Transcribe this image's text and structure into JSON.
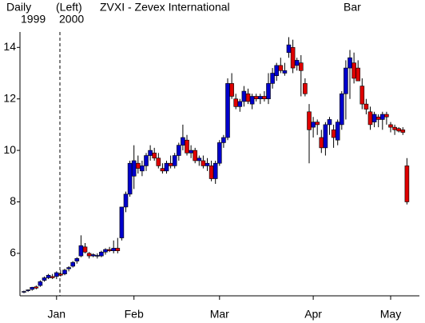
{
  "chart_data": {
    "type": "candlestick",
    "title": "ZVXI - Zevex International",
    "header": {
      "period": "Daily",
      "start_year": "1999",
      "axis_side": "(Left)",
      "end_year": "2000",
      "style": "Bar"
    },
    "categories": [
      null,
      null,
      null,
      null,
      null,
      null,
      null,
      null,
      "Jan",
      null,
      null,
      null,
      null,
      null,
      null,
      null,
      null,
      null,
      null,
      null,
      null,
      null,
      null,
      null,
      null,
      null,
      null,
      "Feb",
      null,
      null,
      null,
      null,
      null,
      null,
      null,
      null,
      null,
      null,
      null,
      null,
      null,
      null,
      null,
      null,
      null,
      null,
      null,
      null,
      "Mar",
      null,
      null,
      null,
      null,
      null,
      null,
      null,
      null,
      null,
      null,
      null,
      null,
      null,
      null,
      null,
      null,
      null,
      null,
      null,
      null,
      null,
      null,
      "Apr",
      null,
      null,
      null,
      null,
      null,
      null,
      null,
      null,
      null,
      null,
      null,
      null,
      null,
      null,
      null,
      null,
      null,
      null,
      "May",
      null,
      null,
      null,
      null
    ],
    "open": [
      4.5,
      4.55,
      4.6,
      4.7,
      4.75,
      4.95,
      5.05,
      5.1,
      5.1,
      5.2,
      5.2,
      5.4,
      5.5,
      5.7,
      5.9,
      6.25,
      6.0,
      5.9,
      5.9,
      5.9,
      6.05,
      6.15,
      6.1,
      6.2,
      6.6,
      7.8,
      8.3,
      9.0,
      9.5,
      9.2,
      9.4,
      9.8,
      9.9,
      9.7,
      9.3,
      9.2,
      9.5,
      9.4,
      9.8,
      10.2,
      10.4,
      9.9,
      10.0,
      9.6,
      9.6,
      9.4,
      9.4,
      8.9,
      9.5,
      10.3,
      10.5,
      12.6,
      12.0,
      11.7,
      11.9,
      12.2,
      11.8,
      12.1,
      12.0,
      12.1,
      12.0,
      12.6,
      12.9,
      13.3,
      13.0,
      13.8,
      14.0,
      13.3,
      13.4,
      12.6,
      11.5,
      10.9,
      11.1,
      10.5,
      10.1,
      11.0,
      10.8,
      10.4,
      11.0,
      12.2,
      13.2,
      13.4,
      13.2,
      12.5,
      11.8,
      11.5,
      11.1,
      11.3,
      11.2,
      11.4,
      11.0,
      10.9,
      10.85,
      10.8,
      9.4
    ],
    "high": [
      4.55,
      4.6,
      4.7,
      4.75,
      4.95,
      5.1,
      5.2,
      5.2,
      5.3,
      5.35,
      5.4,
      5.5,
      5.7,
      5.85,
      6.7,
      6.4,
      6.05,
      6.0,
      6.0,
      6.1,
      6.2,
      6.25,
      6.5,
      6.6,
      7.8,
      8.4,
      9.6,
      10.2,
      9.8,
      9.6,
      9.9,
      10.2,
      10.1,
      9.9,
      9.5,
      9.6,
      9.8,
      9.9,
      10.3,
      11.0,
      10.6,
      10.2,
      10.1,
      9.8,
      9.8,
      9.7,
      9.6,
      9.6,
      10.4,
      10.6,
      12.8,
      13.0,
      12.2,
      12.0,
      12.5,
      12.4,
      12.2,
      12.2,
      12.2,
      12.3,
      13.0,
      13.2,
      13.4,
      13.6,
      13.4,
      14.4,
      14.3,
      13.6,
      13.7,
      12.8,
      11.8,
      11.3,
      11.2,
      10.8,
      11.1,
      11.3,
      11.0,
      11.2,
      12.3,
      13.5,
      13.9,
      13.8,
      13.5,
      12.8,
      12.0,
      11.7,
      11.5,
      11.4,
      11.5,
      11.5,
      11.1,
      11.0,
      10.9,
      10.9,
      9.7
    ],
    "low": [
      4.45,
      4.5,
      4.55,
      4.6,
      4.7,
      4.9,
      5.0,
      5.0,
      5.0,
      5.1,
      5.15,
      5.3,
      5.45,
      5.6,
      5.85,
      6.0,
      5.8,
      5.85,
      5.8,
      5.85,
      5.95,
      6.05,
      6.0,
      6.0,
      6.5,
      7.6,
      8.2,
      8.5,
      9.1,
      9.0,
      9.2,
      9.6,
      9.6,
      9.3,
      9.1,
      9.1,
      9.3,
      9.3,
      9.6,
      10.0,
      9.8,
      9.7,
      9.5,
      9.4,
      9.3,
      9.2,
      8.8,
      8.7,
      9.4,
      10.1,
      10.4,
      12.0,
      11.6,
      11.5,
      11.7,
      11.8,
      11.6,
      11.9,
      11.8,
      11.9,
      11.8,
      12.4,
      12.7,
      13.0,
      12.9,
      13.6,
      13.0,
      13.1,
      12.1,
      12.1,
      9.5,
      10.5,
      10.6,
      9.9,
      9.8,
      10.6,
      10.1,
      10.2,
      10.8,
      11.2,
      12.0,
      12.6,
      12.7,
      11.6,
      11.4,
      10.8,
      10.9,
      10.9,
      10.8,
      11.0,
      10.7,
      10.6,
      10.7,
      10.6,
      7.9
    ],
    "close": [
      4.52,
      4.58,
      4.68,
      4.65,
      4.9,
      5.05,
      5.15,
      5.05,
      5.25,
      5.15,
      5.35,
      5.45,
      5.65,
      5.8,
      6.3,
      6.05,
      5.9,
      5.95,
      5.92,
      6.05,
      6.15,
      6.1,
      6.2,
      6.1,
      7.8,
      8.3,
      9.5,
      9.6,
      9.3,
      9.4,
      9.8,
      10.0,
      9.7,
      9.4,
      9.2,
      9.5,
      9.4,
      9.8,
      10.2,
      10.5,
      9.9,
      10.0,
      9.6,
      9.7,
      9.4,
      9.5,
      8.9,
      9.5,
      10.3,
      10.5,
      12.6,
      12.1,
      11.7,
      11.9,
      12.3,
      11.9,
      12.1,
      12.0,
      12.1,
      12.0,
      12.6,
      13.0,
      13.3,
      13.1,
      13.1,
      14.1,
      13.2,
      13.5,
      13.1,
      12.2,
      10.8,
      11.1,
      11.0,
      10.1,
      11.0,
      11.2,
      10.5,
      11.1,
      12.2,
      13.2,
      13.6,
      12.8,
      12.7,
      11.8,
      11.6,
      11.0,
      11.4,
      11.2,
      11.4,
      11.3,
      10.9,
      10.8,
      10.75,
      10.7,
      8.0
    ],
    "up_color": "#0000cc",
    "down_color": "#dd0000",
    "ylim": [
      4.35,
      14.6
    ],
    "yticks": [
      6,
      8,
      10,
      12,
      14
    ]
  }
}
